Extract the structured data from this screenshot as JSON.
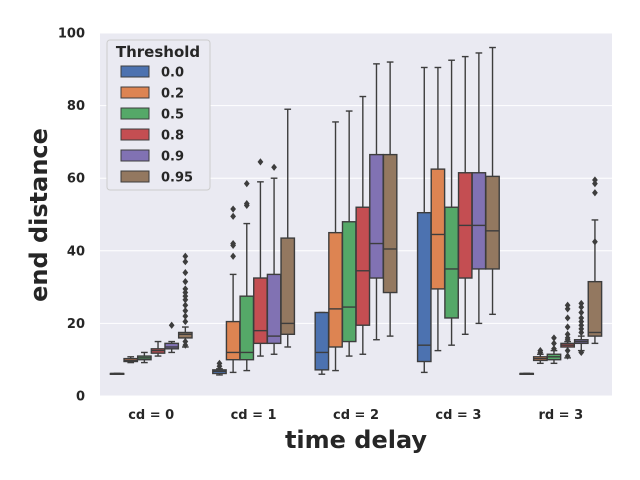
{
  "chart_data": {
    "type": "box",
    "xlabel": "time delay",
    "ylabel": "end distance",
    "ylim": [
      0,
      100
    ],
    "yticks": [
      0,
      20,
      40,
      60,
      80,
      100
    ],
    "grid": "horizontal",
    "legend": {
      "title": "Threshold",
      "placement": "top-left"
    },
    "categories": [
      "cd = 0",
      "cd = 1",
      "cd = 2",
      "cd = 3",
      "rd = 3"
    ],
    "colors": {
      "background": "#eaeaf2",
      "grid": "#ffffff",
      "box_edge": "#3d3d3d"
    },
    "series": [
      {
        "name": "0.0",
        "color": "#4c72b0",
        "boxes": [
          {
            "whislo": 6.2,
            "q1": 6.2,
            "med": 6.2,
            "q3": 6.2,
            "whishi": 6.2,
            "fliers": []
          },
          {
            "whislo": 5.8,
            "q1": 6.2,
            "med": 6.8,
            "q3": 7.2,
            "whishi": 7.5,
            "fliers": [
              8.2,
              9.0
            ]
          },
          {
            "whislo": 6.0,
            "q1": 7.2,
            "med": 12.0,
            "q3": 23.0,
            "whishi": 23.0,
            "fliers": []
          },
          {
            "whislo": 6.5,
            "q1": 9.5,
            "med": 14.0,
            "q3": 50.5,
            "whishi": 90.5,
            "fliers": []
          },
          {
            "whislo": 6.2,
            "q1": 6.2,
            "med": 6.2,
            "q3": 6.2,
            "whishi": 6.2,
            "fliers": []
          }
        ]
      },
      {
        "name": "0.2",
        "color": "#dd8452",
        "boxes": [
          {
            "whislo": 9.2,
            "q1": 9.5,
            "med": 9.8,
            "q3": 10.3,
            "whishi": 10.8,
            "fliers": []
          },
          {
            "whislo": 6.5,
            "q1": 10.0,
            "med": 12.0,
            "q3": 20.5,
            "whishi": 33.5,
            "fliers": [
              38.5,
              41.5,
              42.0,
              49.5,
              51.5
            ]
          },
          {
            "whislo": 7.0,
            "q1": 13.5,
            "med": 24.0,
            "q3": 45.0,
            "whishi": 75.5,
            "fliers": []
          },
          {
            "whislo": 12.5,
            "q1": 29.5,
            "med": 44.5,
            "q3": 62.5,
            "whishi": 90.5,
            "fliers": []
          },
          {
            "whislo": 9.0,
            "q1": 9.8,
            "med": 10.3,
            "q3": 10.8,
            "whishi": 11.5,
            "fliers": [
              12.0,
              12.5
            ]
          }
        ]
      },
      {
        "name": "0.5",
        "color": "#55a868",
        "boxes": [
          {
            "whislo": 9.2,
            "q1": 10.0,
            "med": 10.5,
            "q3": 11.0,
            "whishi": 12.0,
            "fliers": []
          },
          {
            "whislo": 7.0,
            "q1": 10.0,
            "med": 12.0,
            "q3": 27.5,
            "whishi": 47.5,
            "fliers": [
              52.5,
              53.0,
              58.5
            ]
          },
          {
            "whislo": 11.0,
            "q1": 15.0,
            "med": 24.5,
            "q3": 48.0,
            "whishi": 78.5,
            "fliers": []
          },
          {
            "whislo": 14.0,
            "q1": 21.5,
            "med": 35.0,
            "q3": 52.0,
            "whishi": 92.5,
            "fliers": []
          },
          {
            "whislo": 9.0,
            "q1": 10.0,
            "med": 10.8,
            "q3": 11.5,
            "whishi": 12.5,
            "fliers": [
              13.0,
              14.5,
              16.0
            ]
          }
        ]
      },
      {
        "name": "0.8",
        "color": "#c44e52",
        "boxes": [
          {
            "whislo": 11.0,
            "q1": 11.8,
            "med": 12.5,
            "q3": 13.0,
            "whishi": 15.0,
            "fliers": []
          },
          {
            "whislo": 11.0,
            "q1": 14.5,
            "med": 18.0,
            "q3": 32.5,
            "whishi": 59.0,
            "fliers": [
              64.5
            ]
          },
          {
            "whislo": 11.5,
            "q1": 19.5,
            "med": 34.5,
            "q3": 52.0,
            "whishi": 82.5,
            "fliers": []
          },
          {
            "whislo": 17.0,
            "q1": 32.5,
            "med": 47.0,
            "q3": 61.5,
            "whishi": 93.5,
            "fliers": []
          },
          {
            "whislo": 10.5,
            "q1": 13.5,
            "med": 14.0,
            "q3": 14.5,
            "whishi": 15.0,
            "fliers": [
              11.0,
              12.5,
              15.5,
              16.0,
              17.0,
              19.0,
              21.5,
              24.0,
              25.0
            ]
          }
        ]
      },
      {
        "name": "0.9",
        "color": "#8172b3",
        "boxes": [
          {
            "whislo": 12.0,
            "q1": 13.0,
            "med": 13.5,
            "q3": 14.5,
            "whishi": 15.0,
            "fliers": [
              19.5
            ]
          },
          {
            "whislo": 11.5,
            "q1": 14.5,
            "med": 16.5,
            "q3": 33.5,
            "whishi": 60.0,
            "fliers": [
              63.0
            ]
          },
          {
            "whislo": 15.5,
            "q1": 32.5,
            "med": 42.0,
            "q3": 66.5,
            "whishi": 91.5,
            "fliers": []
          },
          {
            "whislo": 20.0,
            "q1": 35.0,
            "med": 47.0,
            "q3": 61.5,
            "whishi": 94.5,
            "fliers": []
          },
          {
            "whislo": 12.5,
            "q1": 14.5,
            "med": 15.0,
            "q3": 15.5,
            "whishi": 16.5,
            "fliers": [
              12.0,
              17.5,
              18.5,
              19.5,
              20.5,
              21.5,
              23.0,
              24.5,
              25.5
            ]
          }
        ]
      },
      {
        "name": "0.95",
        "color": "#937860",
        "boxes": [
          {
            "whislo": 13.5,
            "q1": 16.0,
            "med": 17.0,
            "q3": 17.5,
            "whishi": 19.0,
            "fliers": [
              14.0,
              15.0,
              20.5,
              22.0,
              23.5,
              25.0,
              26.5,
              27.5,
              28.5,
              29.5,
              31.5,
              34.0,
              37.0,
              38.5
            ]
          },
          {
            "whislo": 13.5,
            "q1": 17.0,
            "med": 20.0,
            "q3": 43.5,
            "whishi": 79.0,
            "fliers": []
          },
          {
            "whislo": 16.5,
            "q1": 28.5,
            "med": 40.5,
            "q3": 66.5,
            "whishi": 92.0,
            "fliers": []
          },
          {
            "whislo": 22.5,
            "q1": 35.0,
            "med": 45.5,
            "q3": 60.5,
            "whishi": 96.0,
            "fliers": []
          },
          {
            "whislo": 14.5,
            "q1": 16.5,
            "med": 17.5,
            "q3": 31.5,
            "whishi": 48.5,
            "fliers": [
              42.5,
              56.0,
              58.5,
              59.5
            ]
          }
        ]
      }
    ]
  }
}
